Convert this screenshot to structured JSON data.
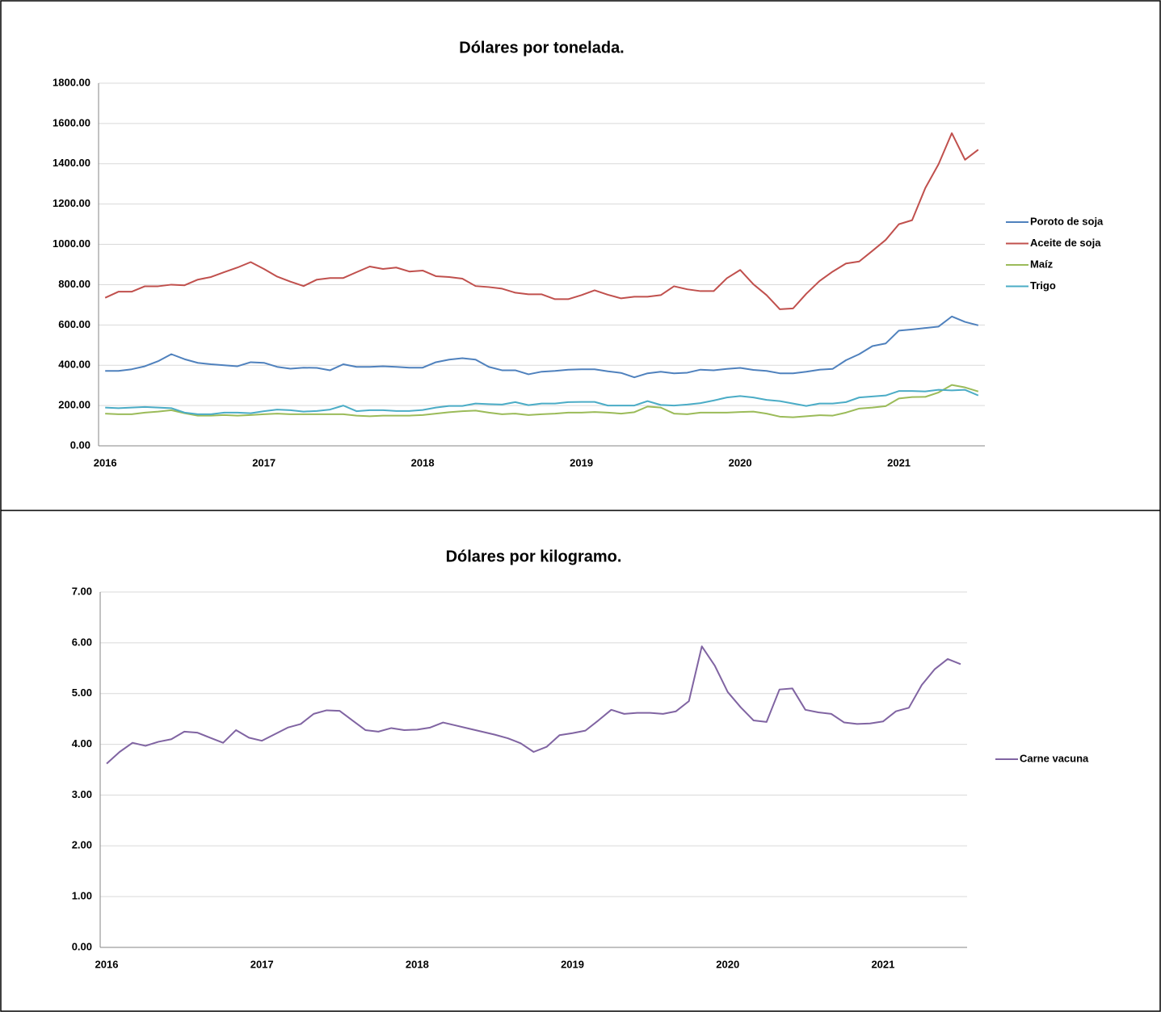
{
  "chart_data": [
    {
      "type": "line",
      "title": "Dólares por tonelada.",
      "x": [
        "2016",
        null,
        null,
        null,
        null,
        null,
        null,
        null,
        null,
        null,
        null,
        null,
        "2017",
        null,
        null,
        null,
        null,
        null,
        null,
        null,
        null,
        null,
        null,
        null,
        "2018",
        null,
        null,
        null,
        null,
        null,
        null,
        null,
        null,
        null,
        null,
        null,
        "2019",
        null,
        null,
        null,
        null,
        null,
        null,
        null,
        null,
        null,
        null,
        null,
        "2020",
        null,
        null,
        null,
        null,
        null,
        null,
        null,
        null,
        null,
        null,
        null,
        "2021",
        null,
        null,
        null,
        null,
        null,
        null
      ],
      "series": [
        {
          "name": "Poroto de soja",
          "color": "#4f81bd",
          "values": [
            372,
            372,
            380,
            395,
            420,
            455,
            430,
            412,
            405,
            400,
            395,
            415,
            412,
            392,
            383,
            388,
            387,
            375,
            405,
            392,
            392,
            395,
            392,
            388,
            388,
            415,
            428,
            435,
            428,
            392,
            375,
            375,
            355,
            368,
            372,
            378,
            380,
            380,
            370,
            362,
            340,
            360,
            368,
            360,
            363,
            378,
            375,
            382,
            387,
            377,
            372,
            360,
            360,
            368,
            378,
            382,
            425,
            455,
            495,
            508,
            572,
            578,
            585,
            592,
            642,
            615,
            598
          ]
        },
        {
          "name": "Aceite de soja",
          "color": "#c0504d",
          "values": [
            735,
            765,
            765,
            792,
            792,
            800,
            797,
            825,
            838,
            862,
            885,
            912,
            878,
            840,
            815,
            793,
            825,
            833,
            833,
            862,
            890,
            878,
            885,
            865,
            870,
            842,
            838,
            830,
            793,
            788,
            780,
            760,
            752,
            752,
            728,
            728,
            748,
            772,
            750,
            732,
            740,
            740,
            748,
            792,
            777,
            768,
            768,
            832,
            873,
            802,
            748,
            678,
            682,
            755,
            818,
            865,
            905,
            915,
            968,
            1022,
            1100,
            1120,
            1280,
            1398,
            1552,
            1420,
            1470
          ]
        },
        {
          "name": "Maíz",
          "color": "#9bbb59",
          "values": [
            160,
            157,
            157,
            165,
            170,
            177,
            162,
            150,
            150,
            153,
            150,
            153,
            157,
            160,
            157,
            157,
            157,
            157,
            157,
            150,
            147,
            150,
            150,
            150,
            153,
            160,
            167,
            172,
            175,
            165,
            157,
            160,
            153,
            157,
            160,
            165,
            165,
            168,
            165,
            160,
            167,
            195,
            190,
            160,
            157,
            165,
            165,
            165,
            168,
            170,
            160,
            145,
            142,
            147,
            152,
            150,
            165,
            185,
            190,
            197,
            235,
            242,
            243,
            265,
            302,
            290,
            270
          ]
        },
        {
          "name": "Trigo",
          "color": "#4bacc6",
          "values": [
            190,
            187,
            190,
            193,
            190,
            187,
            165,
            157,
            157,
            165,
            165,
            162,
            172,
            180,
            177,
            170,
            173,
            180,
            200,
            172,
            177,
            177,
            173,
            173,
            178,
            190,
            198,
            198,
            210,
            207,
            205,
            217,
            202,
            210,
            210,
            217,
            218,
            218,
            200,
            200,
            200,
            222,
            203,
            200,
            205,
            212,
            225,
            240,
            247,
            240,
            228,
            222,
            210,
            198,
            210,
            210,
            217,
            240,
            245,
            250,
            272,
            272,
            270,
            278,
            275,
            278,
            250
          ]
        }
      ],
      "ylim": [
        0,
        1800
      ],
      "yticks": [
        {
          "value": 0,
          "label": "0.00"
        },
        {
          "value": 200,
          "label": "200.00"
        },
        {
          "value": 400,
          "label": "400.00"
        },
        {
          "value": 600,
          "label": "600.00"
        },
        {
          "value": 800,
          "label": "800.00"
        },
        {
          "value": 1000,
          "label": "1000.00"
        },
        {
          "value": 1200,
          "label": "1200.00"
        },
        {
          "value": 1400,
          "label": "1400.00"
        },
        {
          "value": 1600,
          "label": "1600.00"
        },
        {
          "value": 1800,
          "label": "1800.00"
        }
      ],
      "grid": true,
      "legend": "right"
    },
    {
      "type": "line",
      "title": "Dólares por kilogramo.",
      "x": [
        "2016",
        null,
        null,
        null,
        null,
        null,
        null,
        null,
        null,
        null,
        null,
        null,
        "2017",
        null,
        null,
        null,
        null,
        null,
        null,
        null,
        null,
        null,
        null,
        null,
        "2018",
        null,
        null,
        null,
        null,
        null,
        null,
        null,
        null,
        null,
        null,
        null,
        "2019",
        null,
        null,
        null,
        null,
        null,
        null,
        null,
        null,
        null,
        null,
        null,
        "2020",
        null,
        null,
        null,
        null,
        null,
        null,
        null,
        null,
        null,
        null,
        null,
        "2021",
        null,
        null,
        null,
        null,
        null,
        null
      ],
      "series": [
        {
          "name": "Carne vacuna",
          "color": "#8064a2",
          "values": [
            3.62,
            3.85,
            4.03,
            3.97,
            4.05,
            4.1,
            4.25,
            4.23,
            4.13,
            4.03,
            4.28,
            4.13,
            4.07,
            4.2,
            4.33,
            4.4,
            4.6,
            4.67,
            4.66,
            4.47,
            4.28,
            4.25,
            4.32,
            4.28,
            4.29,
            4.33,
            4.43,
            4.37,
            4.31,
            4.25,
            4.19,
            4.12,
            4.02,
            3.85,
            3.95,
            4.18,
            4.22,
            4.27,
            4.47,
            4.68,
            4.6,
            4.62,
            4.62,
            4.6,
            4.65,
            4.85,
            5.93,
            5.55,
            5.03,
            4.73,
            4.47,
            4.44,
            5.08,
            5.1,
            4.68,
            4.63,
            4.6,
            4.43,
            4.4,
            4.41,
            4.45,
            4.65,
            4.72,
            5.17,
            5.48,
            5.68,
            5.58
          ]
        }
      ],
      "ylim": [
        0,
        7
      ],
      "yticks": [
        {
          "value": 0,
          "label": "0.00"
        },
        {
          "value": 1,
          "label": "1.00"
        },
        {
          "value": 2,
          "label": "2.00"
        },
        {
          "value": 3,
          "label": "3.00"
        },
        {
          "value": 4,
          "label": "4.00"
        },
        {
          "value": 5,
          "label": "5.00"
        },
        {
          "value": 6,
          "label": "6.00"
        },
        {
          "value": 7,
          "label": "7.00"
        }
      ],
      "grid": true,
      "legend": "right"
    }
  ]
}
